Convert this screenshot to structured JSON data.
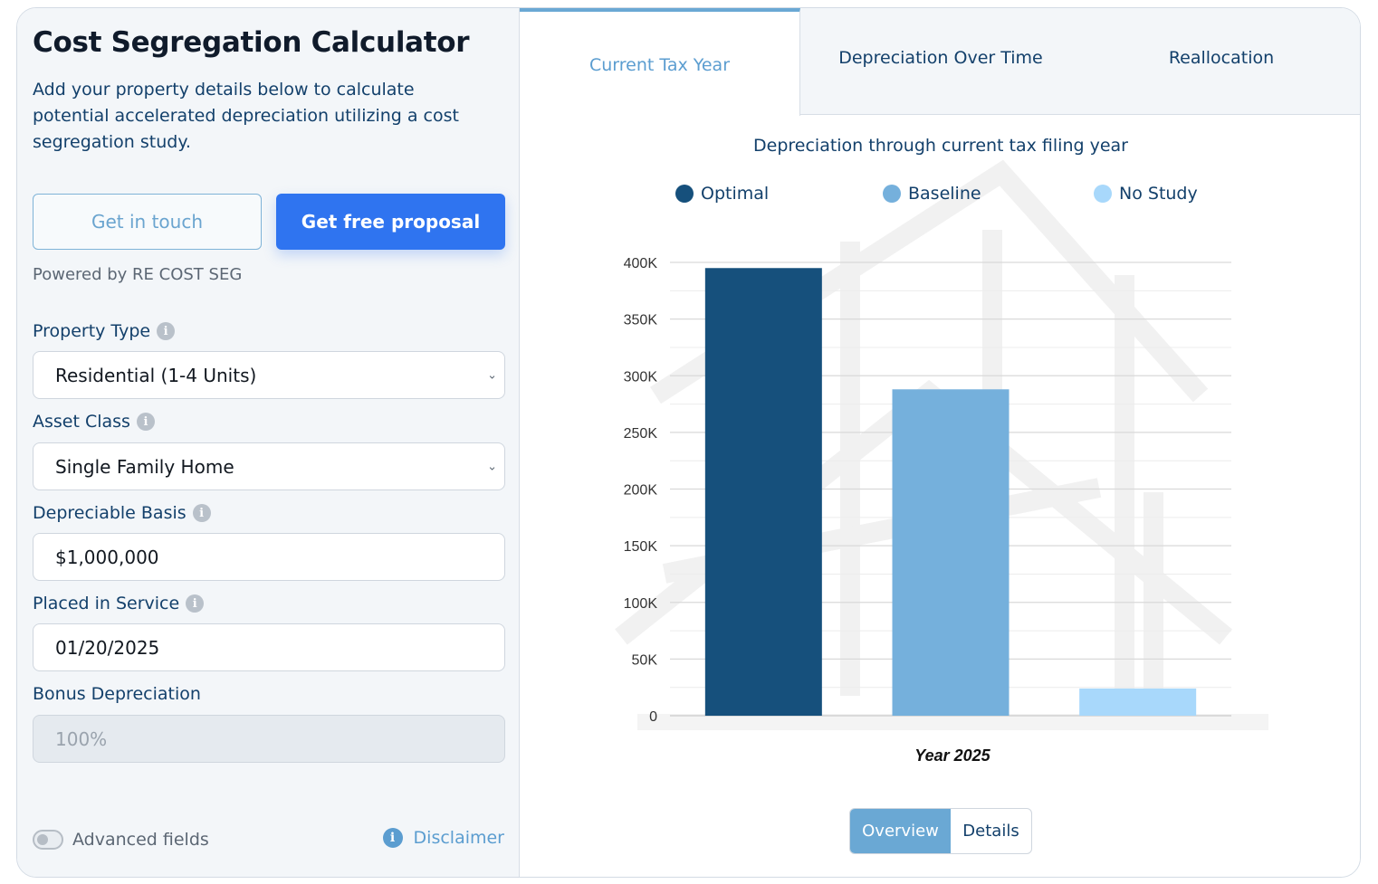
{
  "sidebar": {
    "title": "Cost Segregation Calculator",
    "subtitle": "Add your property details below to calculate potential accelerated depreciation utilizing a cost segregation study.",
    "get_in_touch": "Get in touch",
    "get_proposal": "Get free proposal",
    "powered_by": "Powered by RE COST SEG",
    "fields": {
      "property_type": {
        "label": "Property Type",
        "value": "Residential (1-4 Units)"
      },
      "asset_class": {
        "label": "Asset Class",
        "value": "Single Family Home"
      },
      "depreciable_basis": {
        "label": "Depreciable Basis",
        "value": "$1,000,000"
      },
      "placed_in_service": {
        "label": "Placed in Service",
        "value": "01/20/2025"
      },
      "bonus_depreciation": {
        "label": "Bonus Depreciation",
        "value": "100%"
      }
    },
    "advanced_fields": {
      "label": "Advanced fields",
      "enabled": false
    },
    "disclaimer": "Disclaimer"
  },
  "tabs": [
    {
      "label": "Current Tax Year",
      "active": true
    },
    {
      "label": "Depreciation Over Time",
      "active": false
    },
    {
      "label": "Reallocation",
      "active": false
    }
  ],
  "view_toggle": {
    "overview": "Overview",
    "details": "Details",
    "selected": "overview"
  },
  "colors": {
    "accent": "#2f74f0",
    "optimal": "#16507c",
    "baseline": "#75b0dc",
    "no_study": "#a8d8fb",
    "tab_active": "#5b9dd0"
  },
  "chart_data": {
    "type": "bar",
    "title": "Depreciation through current tax filing year",
    "xlabel": "Year 2025",
    "ylabel": "",
    "ylim": [
      0,
      400000
    ],
    "ytick_values": [
      0,
      50000,
      100000,
      150000,
      200000,
      250000,
      300000,
      350000,
      400000
    ],
    "ytick_labels": [
      "0",
      "50K",
      "100K",
      "150K",
      "200K",
      "250K",
      "300K",
      "350K",
      "400K"
    ],
    "grid": true,
    "legend_position": "top",
    "series": [
      {
        "name": "Optimal",
        "values": [
          395000
        ]
      },
      {
        "name": "Baseline",
        "values": [
          288000
        ]
      },
      {
        "name": "No Study",
        "values": [
          24000
        ]
      }
    ]
  }
}
